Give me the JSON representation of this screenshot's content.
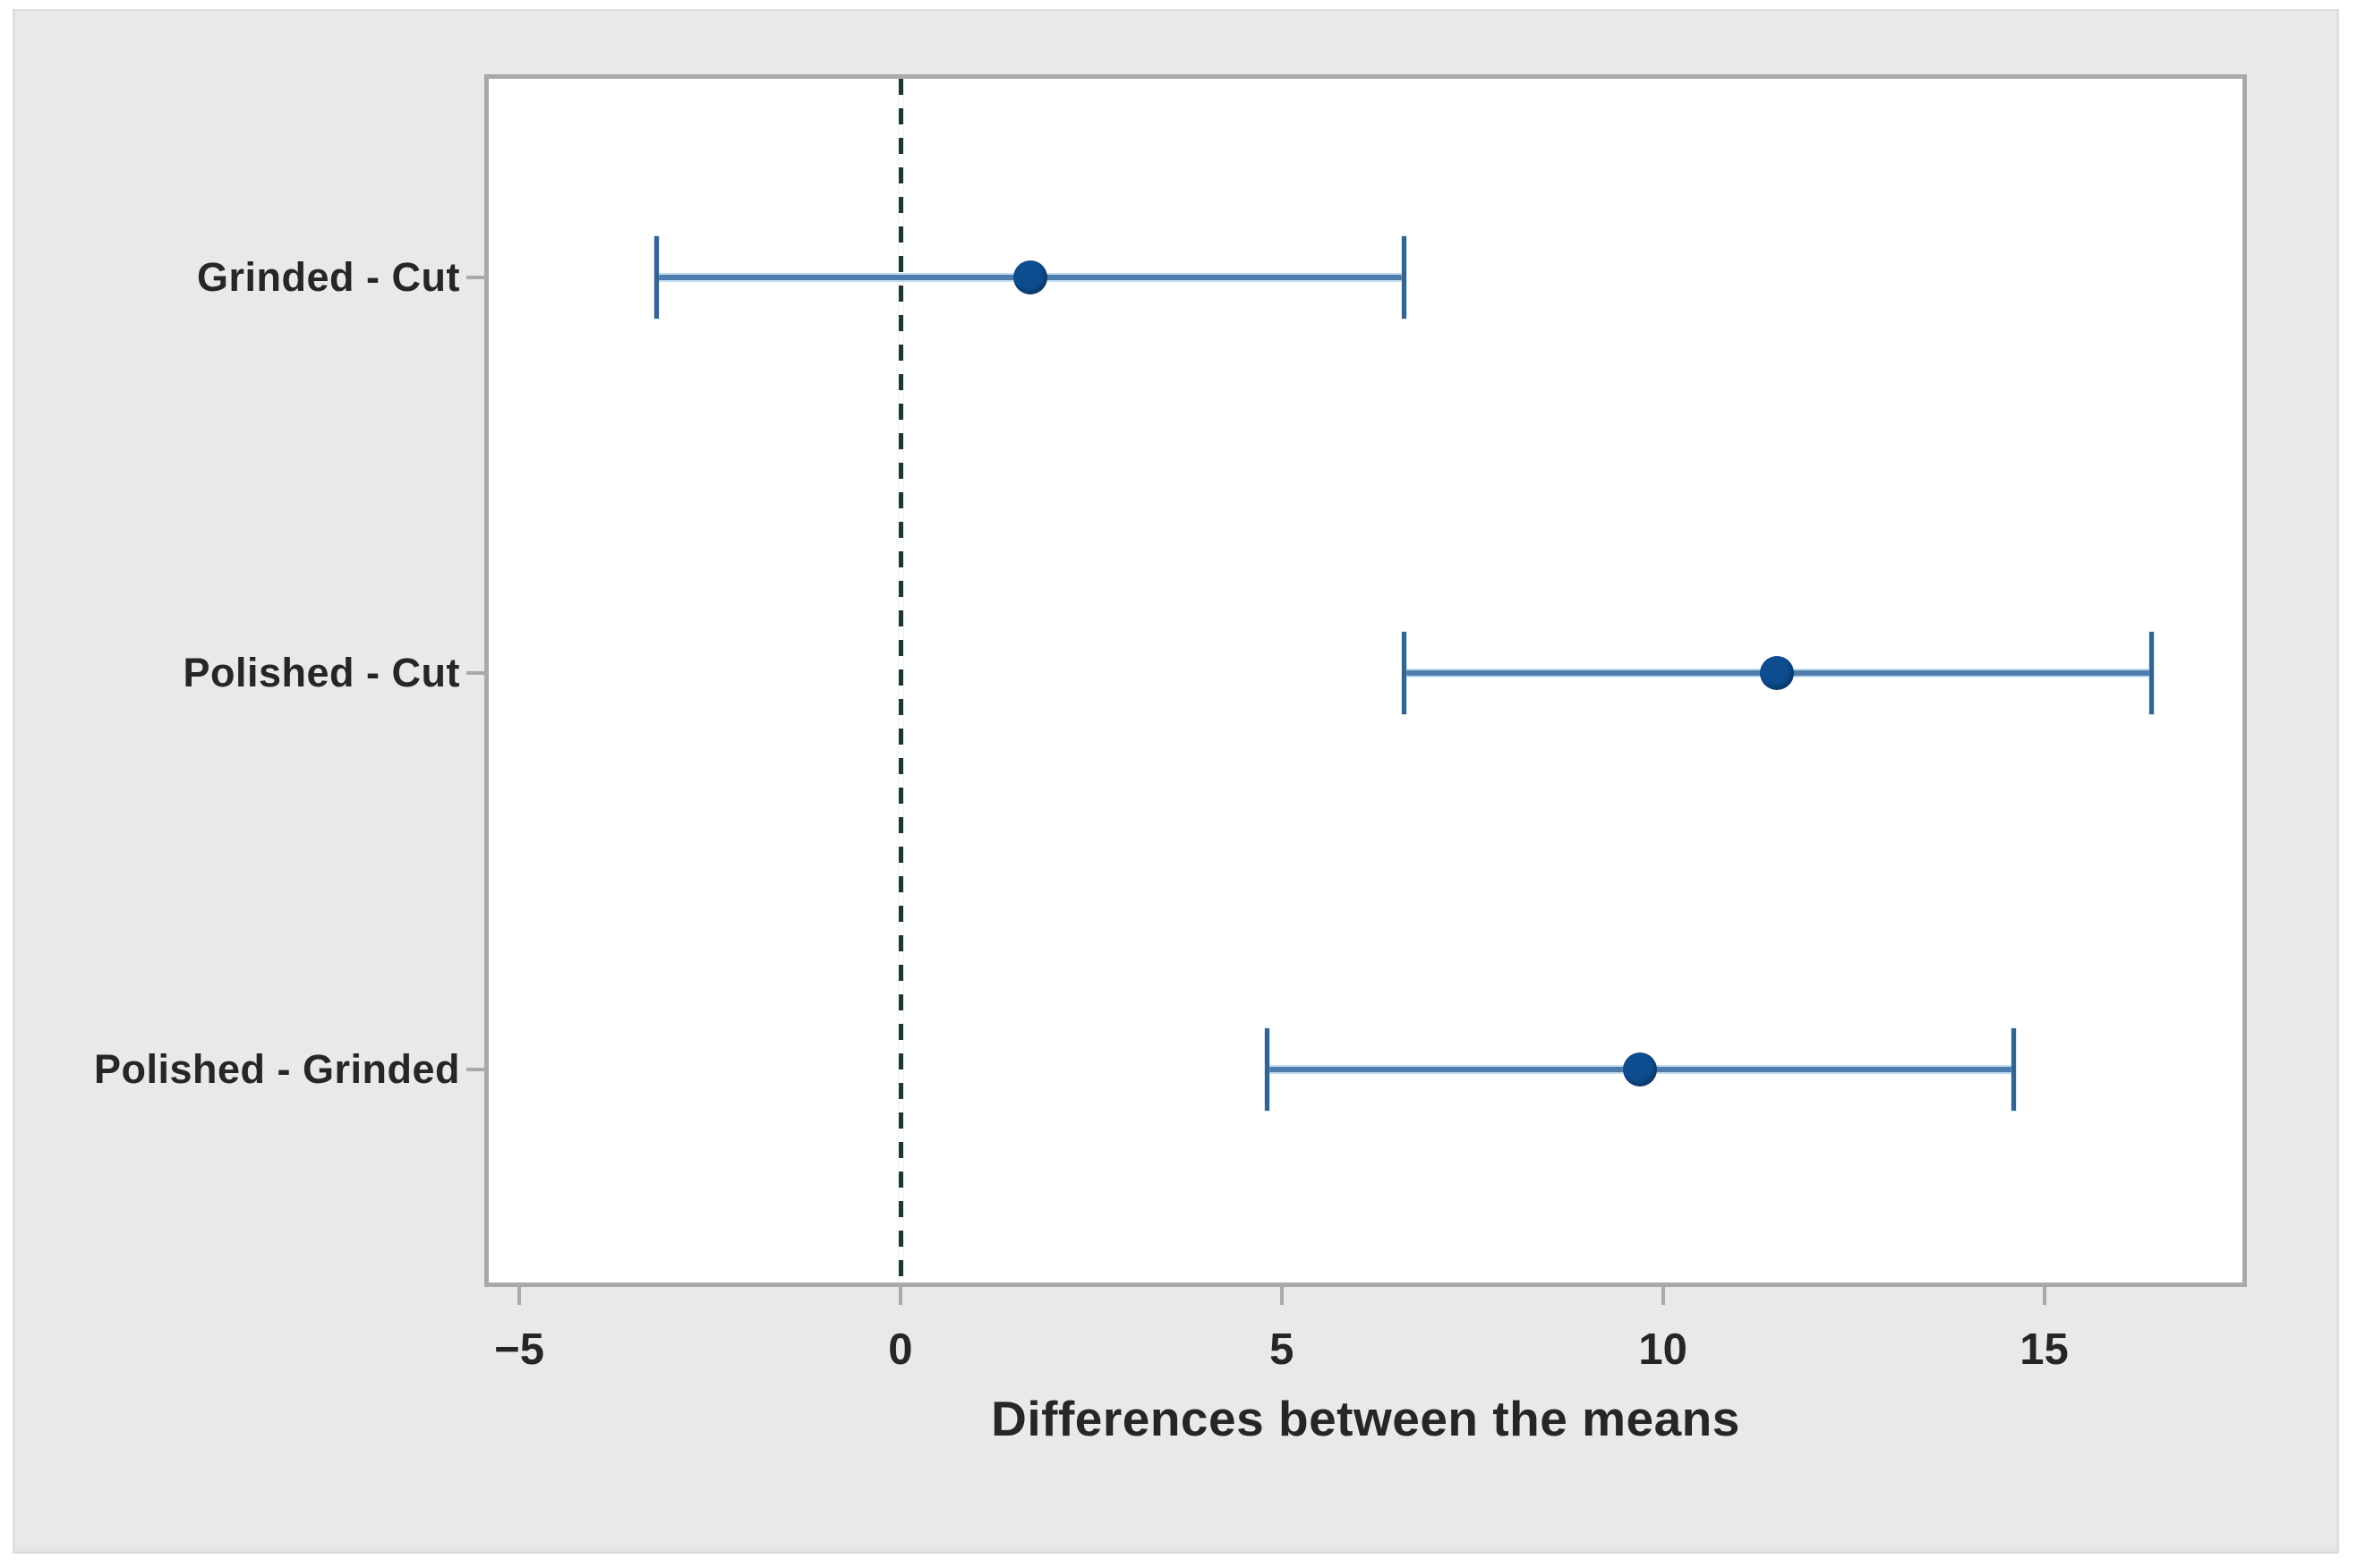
{
  "chart_data": {
    "type": "interval",
    "xlabel": "Differences between the means",
    "categories": [
      "Grinded - Cut",
      "Polished - Cut",
      "Polished - Grinded"
    ],
    "intervals": [
      {
        "label": "Grinded - Cut",
        "lower": -3.2,
        "center": 1.7,
        "upper": 6.6
      },
      {
        "label": "Polished - Cut",
        "lower": 6.6,
        "center": 11.5,
        "upper": 16.4
      },
      {
        "label": "Polished - Grinded",
        "lower": 4.8,
        "center": 9.7,
        "upper": 14.6
      }
    ],
    "x_ticks": [
      -5,
      0,
      5,
      10,
      15
    ],
    "x_tick_labels": [
      "−5",
      "0",
      "5",
      "10",
      "15"
    ],
    "xlim": [
      -5.4,
      17.6
    ],
    "reference_line_x": 0,
    "row_positions_pct": [
      16.5,
      49.4,
      82.3
    ],
    "grid": "off",
    "legend": "none",
    "colors": {
      "interval_line": "#4e7dab",
      "interval_cap": "#35638f",
      "marker": "#0d4c8e",
      "reference_line": "#20372f",
      "frame": "#a9a9a9",
      "panel_bg": "#e9e9e9",
      "plot_bg": "#ffffff",
      "text": "#262626"
    }
  }
}
